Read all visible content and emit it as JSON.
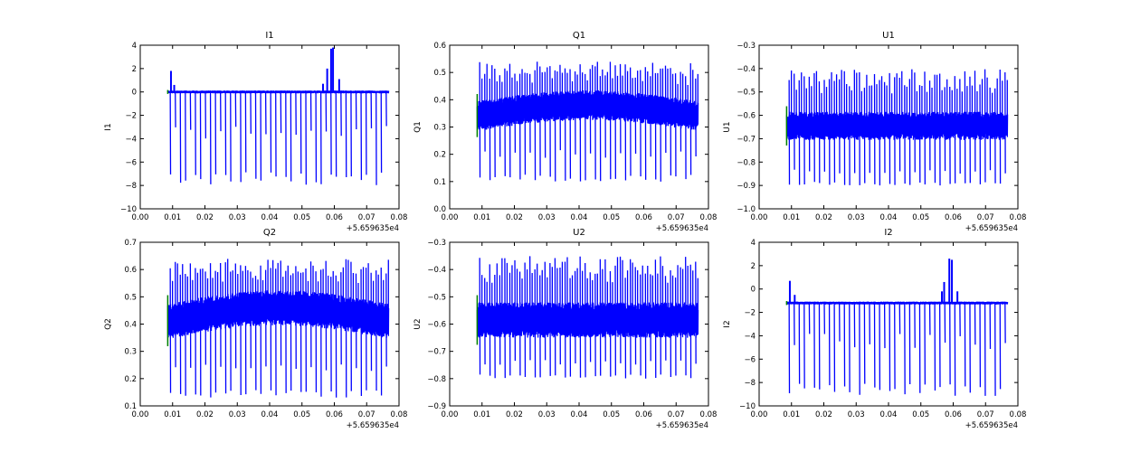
{
  "figure": {
    "background": "#ffffff",
    "trace_color": "#0000ff",
    "start_marker_color": "#008000"
  },
  "chart_data": [
    {
      "type": "line",
      "title": "I1",
      "xlabel": "",
      "ylabel": "I1",
      "xlim": [
        0.0,
        0.08
      ],
      "ylim": [
        -10,
        4
      ],
      "offset_label": "+5.659635e4",
      "xticks": [
        "0.00",
        "0.01",
        "0.02",
        "0.03",
        "0.04",
        "0.05",
        "0.06",
        "0.07",
        "0.08"
      ],
      "yticks": [
        "−10",
        "−8",
        "−6",
        "−4",
        "−2",
        "0",
        "2",
        "4"
      ],
      "x_range": [
        0.0085,
        0.0768
      ],
      "baseline": 0.0,
      "noise_amp": 0.12,
      "trend": 0.0,
      "dip_low": -8.0,
      "dip_mid": -3.5,
      "dip_count": 44,
      "bursts": [
        {
          "x": 0.0095,
          "y": 1.8
        },
        {
          "x": 0.0105,
          "y": 0.6
        },
        {
          "x": 0.0565,
          "y": 0.7
        },
        {
          "x": 0.0578,
          "y": 2.0
        },
        {
          "x": 0.059,
          "y": 3.7
        },
        {
          "x": 0.0596,
          "y": 3.8
        },
        {
          "x": 0.0615,
          "y": 1.1
        }
      ],
      "series": [
        {
          "values_described": "periodic spikes"
        }
      ]
    },
    {
      "type": "line",
      "title": "Q1",
      "xlabel": "",
      "ylabel": "Q1",
      "xlim": [
        0.0,
        0.08
      ],
      "ylim": [
        0.0,
        0.6
      ],
      "offset_label": "+5.659635e4",
      "xticks": [
        "0.00",
        "0.01",
        "0.02",
        "0.03",
        "0.04",
        "0.05",
        "0.06",
        "0.07",
        "0.08"
      ],
      "yticks": [
        "0.0",
        "0.1",
        "0.2",
        "0.3",
        "0.4",
        "0.5",
        "0.6"
      ],
      "x_range": [
        0.0085,
        0.0768
      ],
      "baseline": 0.34,
      "noise_amp": 0.055,
      "trend": 0.04,
      "dip_low": 0.1,
      "dip_mid": 0.2,
      "dip_count": 44,
      "spike_high": 0.54,
      "bursts": [],
      "series": [
        {
          "values_described": "dense oscillation"
        }
      ]
    },
    {
      "type": "line",
      "title": "U1",
      "xlabel": "",
      "ylabel": "U1",
      "xlim": [
        0.0,
        0.08
      ],
      "ylim": [
        -1.0,
        -0.3
      ],
      "offset_label": "+5.659635e4",
      "xticks": [
        "0.00",
        "0.01",
        "0.02",
        "0.03",
        "0.04",
        "0.05",
        "0.06",
        "0.07",
        "0.08"
      ],
      "yticks": [
        "−1.0",
        "−0.9",
        "−0.8",
        "−0.7",
        "−0.6",
        "−0.5",
        "−0.4",
        "−0.3"
      ],
      "x_range": [
        0.0085,
        0.0768
      ],
      "baseline": -0.645,
      "noise_amp": 0.06,
      "trend": 0.0,
      "dip_low": -0.9,
      "dip_mid": -0.84,
      "dip_count": 44,
      "spike_high": -0.4,
      "bursts": [],
      "series": [
        {
          "values_described": "dense oscillation"
        }
      ]
    },
    {
      "type": "line",
      "title": "Q2",
      "xlabel": "",
      "ylabel": "Q2",
      "xlim": [
        0.0,
        0.08
      ],
      "ylim": [
        0.1,
        0.7
      ],
      "offset_label": "+5.659635e4",
      "xticks": [
        "0.00",
        "0.01",
        "0.02",
        "0.03",
        "0.04",
        "0.05",
        "0.06",
        "0.07",
        "0.08"
      ],
      "yticks": [
        "0.1",
        "0.2",
        "0.3",
        "0.4",
        "0.5",
        "0.6",
        "0.7"
      ],
      "x_range": [
        0.0085,
        0.0768
      ],
      "baseline": 0.41,
      "noise_amp": 0.065,
      "trend": 0.05,
      "dip_low": 0.13,
      "dip_mid": 0.24,
      "dip_count": 44,
      "spike_high": 0.64,
      "bursts": [],
      "series": [
        {
          "values_described": "dense oscillation"
        }
      ]
    },
    {
      "type": "line",
      "title": "U2",
      "xlabel": "",
      "ylabel": "U2",
      "xlim": [
        0.0,
        0.08
      ],
      "ylim": [
        -0.9,
        -0.3
      ],
      "offset_label": "+5.659635e4",
      "xticks": [
        "0.00",
        "0.01",
        "0.02",
        "0.03",
        "0.04",
        "0.05",
        "0.06",
        "0.07",
        "0.08"
      ],
      "yticks": [
        "−0.9",
        "−0.8",
        "−0.7",
        "−0.6",
        "−0.5",
        "−0.4",
        "−0.3"
      ],
      "x_range": [
        0.0085,
        0.0768
      ],
      "baseline": -0.585,
      "noise_amp": 0.065,
      "trend": 0.0,
      "dip_low": -0.8,
      "dip_mid": -0.74,
      "dip_count": 44,
      "spike_high": -0.35,
      "bursts": [],
      "series": [
        {
          "values_described": "dense oscillation"
        }
      ]
    },
    {
      "type": "line",
      "title": "I2",
      "xlabel": "",
      "ylabel": "I2",
      "xlim": [
        0.0,
        0.08
      ],
      "ylim": [
        -10,
        4
      ],
      "offset_label": "+5.659635e4",
      "xticks": [
        "0.00",
        "0.01",
        "0.02",
        "0.03",
        "0.04",
        "0.05",
        "0.06",
        "0.07",
        "0.08"
      ],
      "yticks": [
        "−10",
        "−8",
        "−6",
        "−4",
        "−2",
        "0",
        "2",
        "4"
      ],
      "x_range": [
        0.0085,
        0.0768
      ],
      "baseline": -1.2,
      "noise_amp": 0.12,
      "trend": 0.0,
      "dip_low": -9.2,
      "dip_mid": -4.5,
      "dip_count": 44,
      "bursts": [
        {
          "x": 0.0095,
          "y": 0.7
        },
        {
          "x": 0.011,
          "y": -0.5
        },
        {
          "x": 0.0565,
          "y": -0.2
        },
        {
          "x": 0.0572,
          "y": 0.6
        },
        {
          "x": 0.0588,
          "y": 2.6
        },
        {
          "x": 0.0596,
          "y": 2.5
        },
        {
          "x": 0.0613,
          "y": -0.2
        }
      ],
      "series": [
        {
          "values_described": "periodic spikes"
        }
      ]
    }
  ]
}
